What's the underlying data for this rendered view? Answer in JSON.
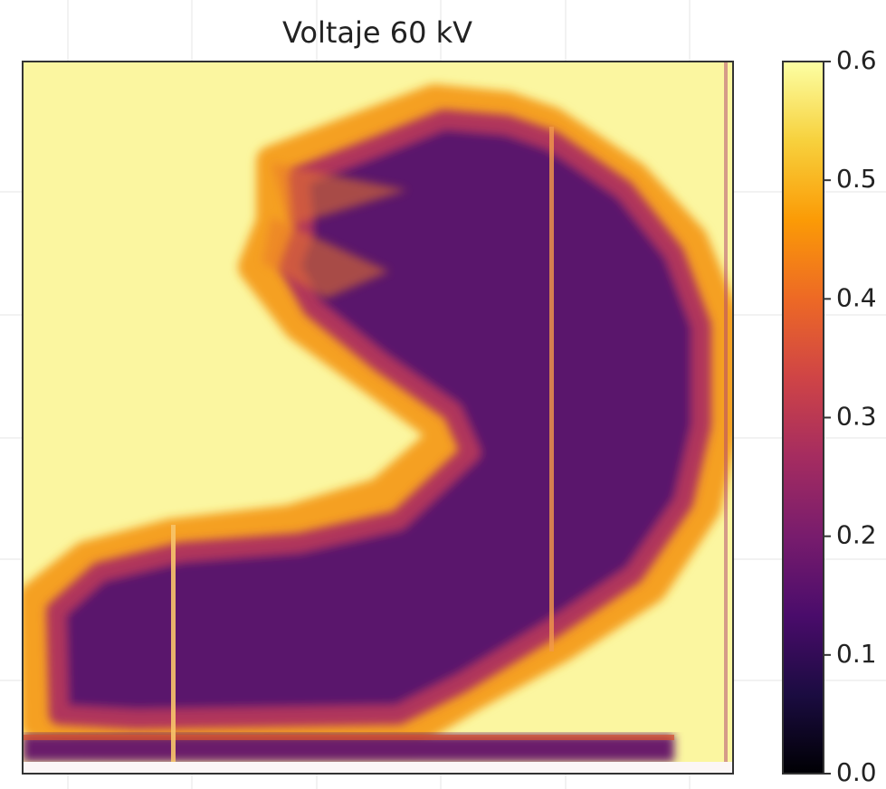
{
  "chart_data": {
    "type": "heatmap",
    "title": "Voltaje 60 kV",
    "colormap": "inferno",
    "clim": [
      0.0,
      0.6
    ],
    "cticks": [
      {
        "value": 0.0,
        "label": "0.0"
      },
      0.1,
      0.2,
      0.3,
      0.4,
      0.5,
      0.6
    ]
  }
}
